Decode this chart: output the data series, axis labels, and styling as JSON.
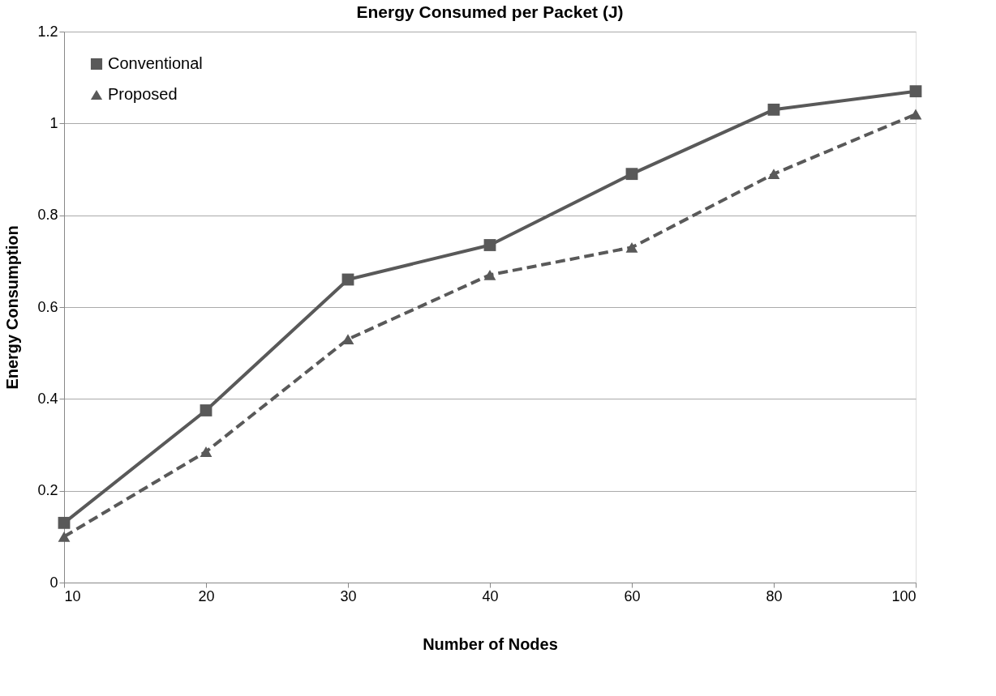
{
  "chart_data": {
    "type": "line",
    "title": "Energy Consumed per Packet (J)",
    "xlabel": "Number of Nodes",
    "ylabel": "Energy Consumption",
    "categories": [
      "10",
      "20",
      "30",
      "40",
      "60",
      "80",
      "100"
    ],
    "series": [
      {
        "name": "Conventional",
        "color": "#595959",
        "marker": "square",
        "line_style": "solid",
        "values": [
          0.13,
          0.375,
          0.66,
          0.735,
          0.89,
          1.03,
          1.07
        ]
      },
      {
        "name": "Proposed",
        "color": "#595959",
        "marker": "triangle",
        "line_style": "dashed",
        "values": [
          0.1,
          0.285,
          0.53,
          0.67,
          0.73,
          0.89,
          1.02
        ]
      }
    ],
    "ylim": [
      0,
      1.2
    ],
    "yticks": [
      0,
      0.2,
      0.4,
      0.6,
      0.8,
      1,
      1.2
    ],
    "grid": "y",
    "legend": "top left"
  }
}
